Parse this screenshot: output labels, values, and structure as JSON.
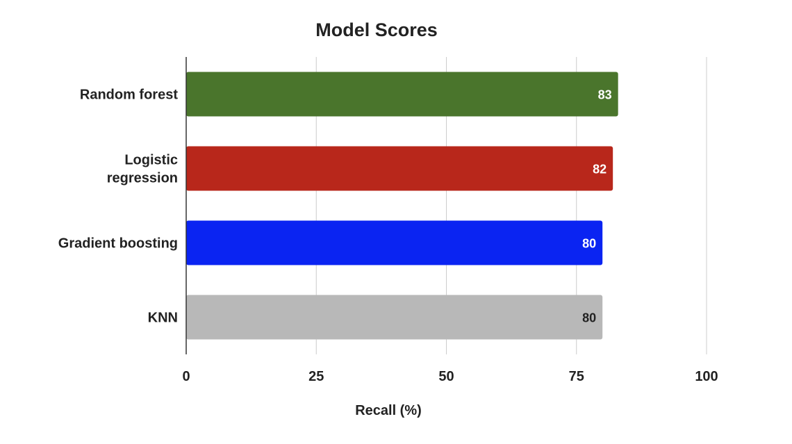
{
  "chart_data": {
    "type": "bar",
    "orientation": "horizontal",
    "title": "Model Scores",
    "xlabel": "Recall (%)",
    "ylabel": "",
    "xlim": [
      0,
      100
    ],
    "xticks": [
      "0",
      "25",
      "50",
      "75",
      "100"
    ],
    "grid": true,
    "legend": "none",
    "categories": [
      "Random forest",
      "Logistic\nregression",
      "Gradient boosting",
      "KNN"
    ],
    "values": [
      83,
      82,
      80,
      80
    ],
    "data_labels": [
      "83",
      "82",
      "80",
      "80"
    ],
    "bar_colors": [
      "#4a752c",
      "#b8271b",
      "#0a24f2",
      "#b8b8b8"
    ],
    "label_colors": [
      "#ffffff",
      "#ffffff",
      "#ffffff",
      "#222222"
    ]
  }
}
